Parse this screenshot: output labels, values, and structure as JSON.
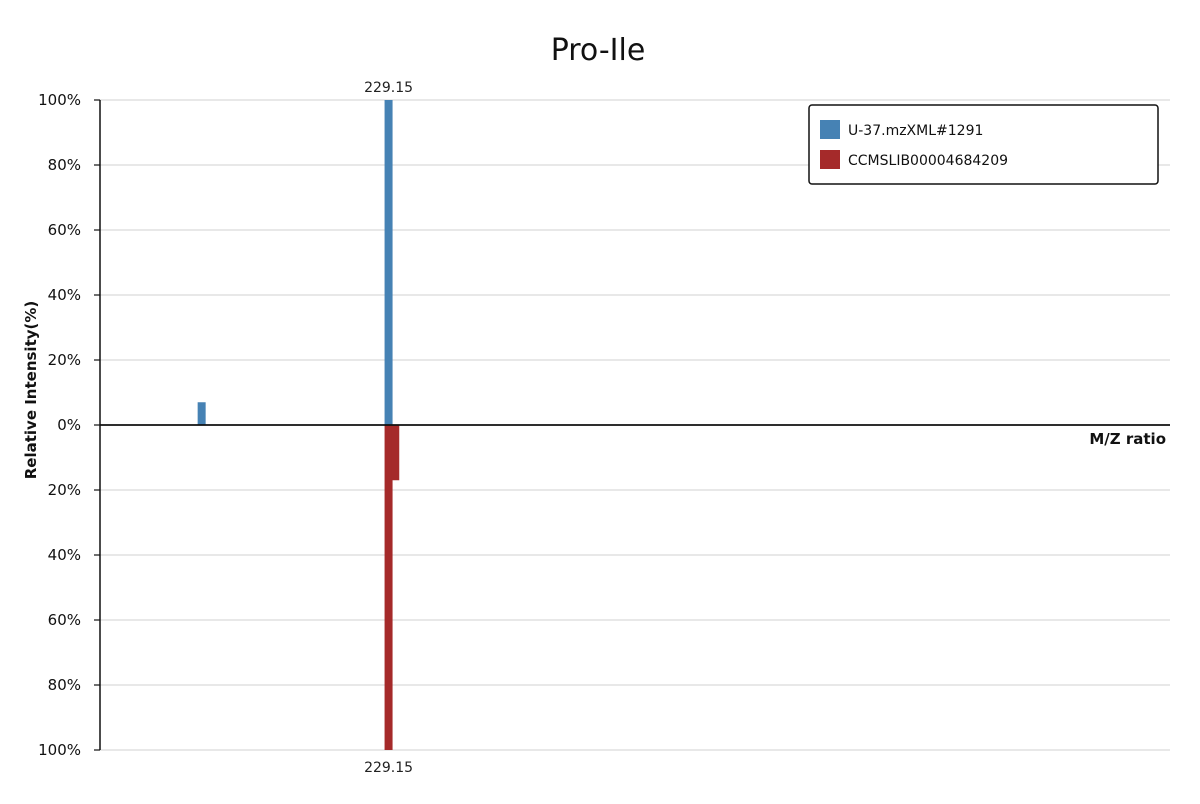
{
  "chart_data": {
    "type": "bar",
    "title": "Pro-Ile",
    "xlabel": "M/Z ratio",
    "ylabel": "Relative Intensity(%)",
    "y_ticks_top": [
      "100%",
      "80%",
      "60%",
      "40%",
      "20%",
      "0%"
    ],
    "y_ticks_bottom": [
      "20%",
      "40%",
      "60%",
      "80%",
      "100%"
    ],
    "ylim": [
      -100,
      100
    ],
    "grid": true,
    "legend_position": "top-right",
    "series": [
      {
        "name": "U-37.mzXML#1291",
        "color": "#4682b4",
        "direction": "up",
        "peaks": [
          {
            "mz": 201.2,
            "intensity": 7
          },
          {
            "mz": 229.15,
            "intensity": 100,
            "label": "229.15"
          }
        ]
      },
      {
        "name": "CCMSLIB00004684209",
        "color": "#a52a2a",
        "direction": "down",
        "peaks": [
          {
            "mz": 229.15,
            "intensity": 100,
            "label": "229.15"
          },
          {
            "mz": 230.15,
            "intensity": 17
          }
        ]
      }
    ],
    "x_range": [
      186.0,
      346.0
    ]
  }
}
